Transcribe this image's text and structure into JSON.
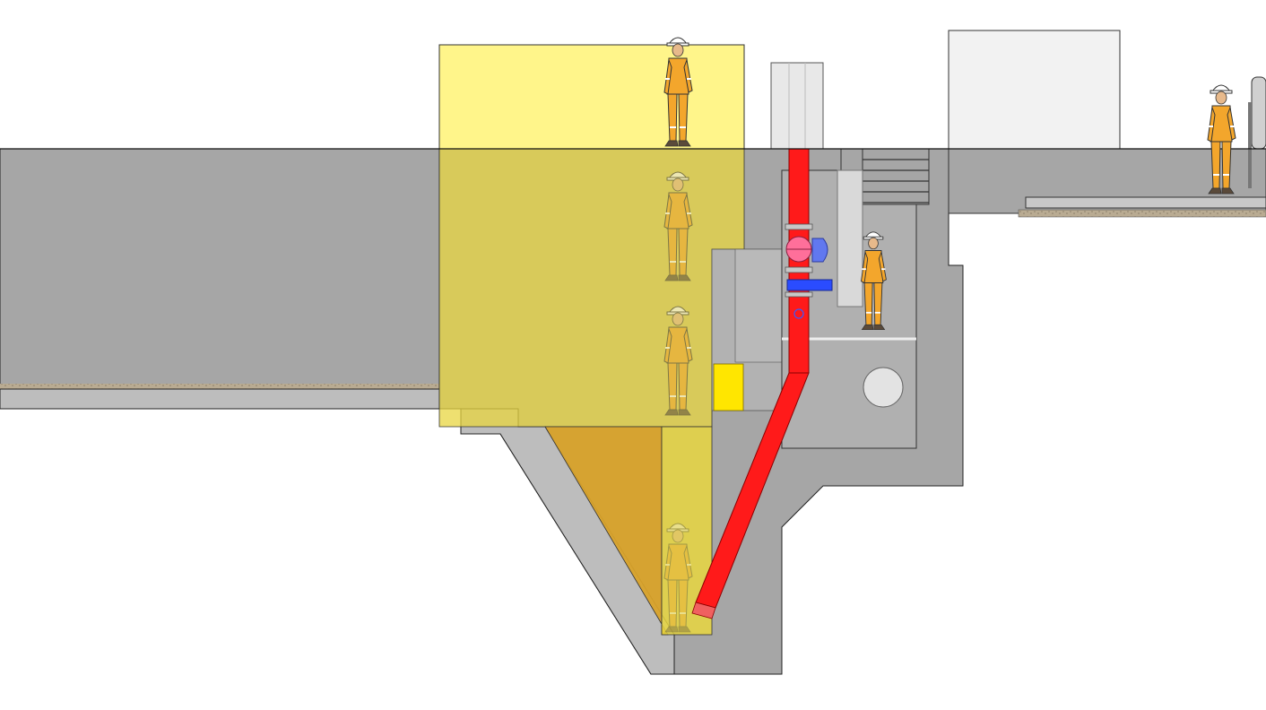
{
  "diagram": {
    "kind": "pump-station-section",
    "labels": [],
    "colors": {
      "concrete": "#a6a6a6",
      "concrete_light": "#bdbdbd",
      "ground_strip": "#b9ab92",
      "access_zone": "#fff58a",
      "access_zone_dark": "#d9c21c",
      "access_zone_orange": "#d8a22a",
      "discharge_pipe": "#ff1a1a",
      "valve_blue": "#2a4cff",
      "pink_valve": "#ff6f9a",
      "building": "#f2f2f2",
      "marker_yellow": "#ffe600",
      "worker_suit": "#f3a62c",
      "worker_helmet": "#ffffff"
    },
    "components": [
      "wet-well",
      "valve-chamber",
      "discharge-pipe",
      "vent-pipe",
      "access-ladder",
      "gate-valve",
      "check-valve",
      "control-building",
      "maintenance-workers"
    ]
  }
}
